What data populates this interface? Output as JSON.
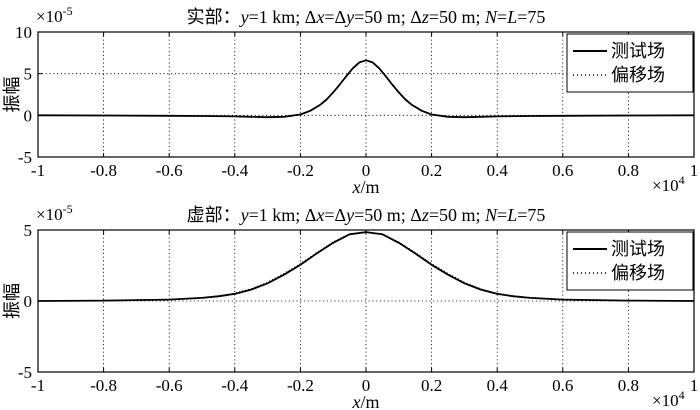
{
  "chart_data": [
    {
      "type": "line",
      "title": {
        "prefix": "实部：",
        "parts": [
          {
            "t": "y",
            "i": true
          },
          {
            "t": "=1 km; Δ"
          },
          {
            "t": "x",
            "i": true
          },
          {
            "t": "=Δ"
          },
          {
            "t": "y",
            "i": true
          },
          {
            "t": "=50 m; Δ"
          },
          {
            "t": "z",
            "i": true
          },
          {
            "t": "=50 m; "
          },
          {
            "t": "N",
            "i": true
          },
          {
            "t": "="
          },
          {
            "t": "L",
            "i": true
          },
          {
            "t": "=75"
          }
        ]
      },
      "xlabel": {
        "var": "x",
        "unit": "/m"
      },
      "ylabel": "振幅",
      "y_exponent": {
        "base": "×10",
        "power": "-5"
      },
      "x_exponent": {
        "base": "×10",
        "power": "4"
      },
      "xlim": [
        -1,
        1
      ],
      "ylim": [
        -5,
        10
      ],
      "xticks": [
        "-1",
        "-0.8",
        "-0.6",
        "-0.4",
        "-0.2",
        "0",
        "0.2",
        "0.4",
        "0.6",
        "0.8",
        "1"
      ],
      "yticks": [
        "-5",
        "0",
        "5",
        "10"
      ],
      "grid": true,
      "legend": {
        "position": "top-right",
        "entries": [
          "测试场",
          "偏移场"
        ]
      },
      "series": [
        {
          "name": "测试场",
          "style": "solid",
          "x": [
            -1,
            -0.8,
            -0.6,
            -0.5,
            -0.4,
            -0.35,
            -0.3,
            -0.25,
            -0.2,
            -0.17,
            -0.14,
            -0.12,
            -0.1,
            -0.08,
            -0.06,
            -0.04,
            -0.02,
            0,
            0.02,
            0.04,
            0.06,
            0.08,
            0.1,
            0.12,
            0.14,
            0.17,
            0.2,
            0.25,
            0.3,
            0.35,
            0.4,
            0.5,
            0.6,
            0.8,
            1
          ],
          "y": [
            0,
            -0.02,
            -0.05,
            -0.08,
            -0.13,
            -0.18,
            -0.22,
            -0.18,
            0.1,
            0.55,
            1.25,
            1.9,
            2.75,
            3.7,
            4.7,
            5.65,
            6.35,
            6.6,
            6.35,
            5.65,
            4.7,
            3.7,
            2.75,
            1.9,
            1.25,
            0.55,
            0.1,
            -0.18,
            -0.22,
            -0.18,
            -0.13,
            -0.08,
            -0.05,
            -0.02,
            0
          ]
        },
        {
          "name": "偏移场",
          "style": "dotted",
          "x": [
            -1,
            -0.8,
            -0.6,
            -0.5,
            -0.4,
            -0.35,
            -0.3,
            -0.25,
            -0.2,
            -0.17,
            -0.14,
            -0.12,
            -0.1,
            -0.08,
            -0.06,
            -0.04,
            -0.02,
            0,
            0.02,
            0.04,
            0.06,
            0.08,
            0.1,
            0.12,
            0.14,
            0.17,
            0.2,
            0.25,
            0.3,
            0.35,
            0.4,
            0.5,
            0.6,
            0.8,
            1
          ],
          "y": [
            0,
            -0.02,
            -0.05,
            -0.08,
            -0.13,
            -0.18,
            -0.22,
            -0.18,
            0.1,
            0.55,
            1.25,
            1.9,
            2.75,
            3.7,
            4.7,
            5.65,
            6.35,
            6.6,
            6.35,
            5.65,
            4.7,
            3.7,
            2.75,
            1.9,
            1.25,
            0.55,
            0.1,
            -0.18,
            -0.22,
            -0.18,
            -0.13,
            -0.08,
            -0.05,
            -0.02,
            0
          ]
        }
      ]
    },
    {
      "type": "line",
      "title": {
        "prefix": "虚部：",
        "parts": [
          {
            "t": "y",
            "i": true
          },
          {
            "t": "=1 km; Δ"
          },
          {
            "t": "x",
            "i": true
          },
          {
            "t": "=Δ"
          },
          {
            "t": "y",
            "i": true
          },
          {
            "t": "=50 m; Δ"
          },
          {
            "t": "z",
            "i": true
          },
          {
            "t": "=50 m; "
          },
          {
            "t": "N",
            "i": true
          },
          {
            "t": "="
          },
          {
            "t": "L",
            "i": true
          },
          {
            "t": "=75"
          }
        ]
      },
      "xlabel": {
        "var": "x",
        "unit": "/m"
      },
      "ylabel": "振幅",
      "y_exponent": {
        "base": "×10",
        "power": "-5"
      },
      "x_exponent": {
        "base": "×10",
        "power": "4"
      },
      "xlim": [
        -1,
        1
      ],
      "ylim": [
        -5,
        5
      ],
      "xticks": [
        "-1",
        "-0.8",
        "-0.6",
        "-0.4",
        "-0.2",
        "0",
        "0.2",
        "0.4",
        "0.6",
        "0.8",
        "1"
      ],
      "yticks": [
        "-5",
        "0",
        "5"
      ],
      "grid": true,
      "legend": {
        "position": "top-right",
        "entries": [
          "测试场",
          "偏移场"
        ]
      },
      "series": [
        {
          "name": "测试场",
          "style": "solid",
          "x": [
            -1,
            -0.8,
            -0.6,
            -0.5,
            -0.45,
            -0.4,
            -0.35,
            -0.3,
            -0.25,
            -0.2,
            -0.15,
            -0.1,
            -0.05,
            0,
            0.05,
            0.1,
            0.15,
            0.2,
            0.25,
            0.3,
            0.35,
            0.4,
            0.45,
            0.5,
            0.6,
            0.8,
            1
          ],
          "y": [
            0,
            0.03,
            0.1,
            0.22,
            0.33,
            0.5,
            0.8,
            1.25,
            1.85,
            2.55,
            3.35,
            4.1,
            4.7,
            4.85,
            4.7,
            4.1,
            3.35,
            2.55,
            1.85,
            1.25,
            0.8,
            0.5,
            0.33,
            0.22,
            0.1,
            0.03,
            0
          ]
        },
        {
          "name": "偏移场",
          "style": "dotted",
          "x": [
            -1,
            -0.8,
            -0.6,
            -0.5,
            -0.45,
            -0.4,
            -0.35,
            -0.3,
            -0.25,
            -0.2,
            -0.15,
            -0.1,
            -0.05,
            0,
            0.05,
            0.1,
            0.15,
            0.2,
            0.25,
            0.3,
            0.35,
            0.4,
            0.45,
            0.5,
            0.6,
            0.8,
            1
          ],
          "y": [
            0,
            0.03,
            0.11,
            0.24,
            0.36,
            0.54,
            0.85,
            1.32,
            1.93,
            2.62,
            3.4,
            4.15,
            4.72,
            4.85,
            4.72,
            4.15,
            3.4,
            2.62,
            1.93,
            1.32,
            0.85,
            0.54,
            0.36,
            0.24,
            0.11,
            0.03,
            0
          ]
        }
      ]
    }
  ]
}
